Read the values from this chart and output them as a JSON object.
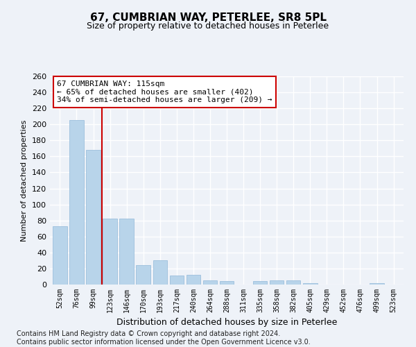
{
  "title": "67, CUMBRIAN WAY, PETERLEE, SR8 5PL",
  "subtitle": "Size of property relative to detached houses in Peterlee",
  "xlabel": "Distribution of detached houses by size in Peterlee",
  "ylabel": "Number of detached properties",
  "categories": [
    "52sqm",
    "76sqm",
    "99sqm",
    "123sqm",
    "146sqm",
    "170sqm",
    "193sqm",
    "217sqm",
    "240sqm",
    "264sqm",
    "288sqm",
    "311sqm",
    "335sqm",
    "358sqm",
    "382sqm",
    "405sqm",
    "429sqm",
    "452sqm",
    "476sqm",
    "499sqm",
    "523sqm"
  ],
  "values": [
    73,
    205,
    168,
    82,
    82,
    24,
    30,
    11,
    12,
    5,
    4,
    0,
    4,
    5,
    5,
    2,
    0,
    0,
    0,
    2,
    0
  ],
  "bar_color": "#b8d4ea",
  "bar_edge_color": "#90b8d8",
  "vline_x": 2.5,
  "vline_color": "#cc0000",
  "annotation_text": "67 CUMBRIAN WAY: 115sqm\n← 65% of detached houses are smaller (402)\n34% of semi-detached houses are larger (209) →",
  "annotation_box_color": "#ffffff",
  "annotation_box_edge": "#cc0000",
  "ylim": [
    0,
    260
  ],
  "yticks": [
    0,
    20,
    40,
    60,
    80,
    100,
    120,
    140,
    160,
    180,
    200,
    220,
    240,
    260
  ],
  "footer": "Contains HM Land Registry data © Crown copyright and database right 2024.\nContains public sector information licensed under the Open Government Licence v3.0.",
  "bg_color": "#eef2f8",
  "plot_bg_color": "#eef2f8",
  "grid_color": "#ffffff",
  "title_fontsize": 11,
  "subtitle_fontsize": 9,
  "footer_fontsize": 7
}
